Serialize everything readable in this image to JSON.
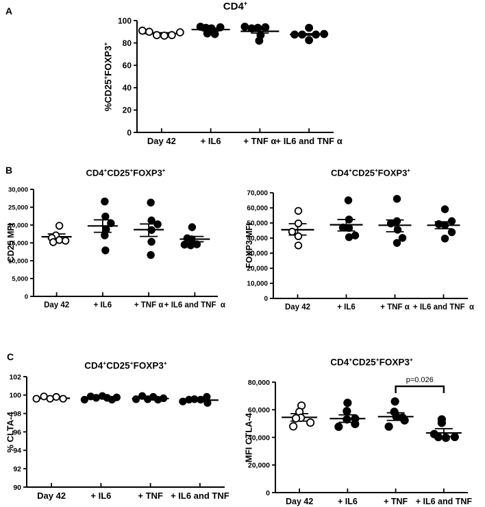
{
  "figure": {
    "background": "#ffffff",
    "ink": "#000000",
    "panels": [
      {
        "letter": "A"
      },
      {
        "letter": "B"
      },
      {
        "letter": "C"
      }
    ]
  },
  "chart_data": [
    {
      "panel": "A",
      "type": "scatter",
      "title_text": "CD4+",
      "title_segments": [
        [
          "CD4",
          0
        ],
        [
          "+",
          1
        ]
      ],
      "ylabel_text": "%CD25+FOXP3+",
      "ylabel_segments": [
        [
          "%CD25",
          0
        ],
        [
          "+",
          1
        ],
        [
          "FOXP3",
          0
        ],
        [
          "+",
          1
        ]
      ],
      "ylim": [
        0,
        100
      ],
      "yticks": [
        [
          0,
          "0"
        ],
        [
          20,
          "20"
        ],
        [
          40,
          "40"
        ],
        [
          60,
          "60"
        ],
        [
          80,
          "80"
        ],
        [
          100,
          "100"
        ]
      ],
      "grid": false,
      "categories": [
        "Day 42",
        "+ IL6",
        "+ TNF α",
        "+ IL6 and TNF α"
      ],
      "groups": [
        {
          "category": "Day 42",
          "marker": "open",
          "mean": 88.4,
          "sem_hi": 89.2,
          "sem_lo": 87.6,
          "points": [
            [
              -28,
              91
            ],
            [
              -18,
              90
            ],
            [
              -7,
              87
            ],
            [
              4,
              86.5
            ],
            [
              15,
              87
            ],
            [
              27,
              89.5
            ]
          ]
        },
        {
          "category": "+ IL6",
          "marker": "filled",
          "mean": 92.0,
          "sem_hi": 93.2,
          "sem_lo": 90.8,
          "points": [
            [
              -15,
              94.5
            ],
            [
              -7,
              93.5
            ],
            [
              1,
              93
            ],
            [
              14,
              94
            ],
            [
              -5,
              88.5
            ],
            [
              6,
              88
            ]
          ]
        },
        {
          "category": "+ TNF α",
          "marker": "filled",
          "mean": 90.4,
          "sem_hi": 92.0,
          "sem_lo": 88.8,
          "points": [
            [
              -22,
              94.5
            ],
            [
              -12,
              93
            ],
            [
              -3,
              93.5
            ],
            [
              8,
              94
            ],
            [
              1,
              87
            ],
            [
              -1,
              82
            ]
          ]
        },
        {
          "category": "+ IL6 and TNF α",
          "marker": "filled",
          "mean": 87.6,
          "sem_hi": 88.3,
          "sem_lo": 86.9,
          "points": [
            [
              -21,
              87.5
            ],
            [
              0,
              93.5
            ],
            [
              -10,
              87.5
            ],
            [
              10,
              87.5
            ],
            [
              22,
              88
            ],
            [
              0,
              82.5
            ]
          ]
        }
      ]
    },
    {
      "panel": "B",
      "type": "scatter",
      "title_text": "CD4+CD25+FOXP3+",
      "title_segments": [
        [
          "CD4",
          0
        ],
        [
          "+",
          1
        ],
        [
          "CD25",
          0
        ],
        [
          "+",
          1
        ],
        [
          "FOXP3",
          0
        ],
        [
          "+",
          1
        ]
      ],
      "ylabel_text": "CD25 MFI",
      "ylabel_segments": [
        [
          "CD25 MFI",
          0
        ]
      ],
      "ylim": [
        0,
        30000
      ],
      "yticks": [
        [
          0,
          "0"
        ],
        [
          5000,
          "5,000"
        ],
        [
          10000,
          "10,000"
        ],
        [
          15000,
          "15,000"
        ],
        [
          20000,
          "20,000"
        ],
        [
          25000,
          "25,000"
        ],
        [
          30000,
          "30,000"
        ]
      ],
      "grid": false,
      "categories": [
        "Day 42",
        "+ IL6",
        "+ TNF α",
        "+ IL6 and TNF  α"
      ],
      "groups": [
        {
          "category": "Day 42",
          "marker": "open",
          "mean": 16700,
          "sem_hi": 17500,
          "sem_lo": 16200,
          "points": [
            [
              4,
              19800
            ],
            [
              -1,
              17100
            ],
            [
              -7,
              16400
            ],
            [
              4,
              15800
            ],
            [
              -5,
              15200
            ],
            [
              13,
              15600
            ]
          ]
        },
        {
          "category": "+ IL6",
          "marker": "filled",
          "mean": 19750,
          "sem_hi": 21450,
          "sem_lo": 17950,
          "points": [
            [
              3,
              26600
            ],
            [
              4,
              22400
            ],
            [
              12,
              20500
            ],
            [
              5,
              18800
            ],
            [
              3,
              17100
            ],
            [
              4,
              12900
            ]
          ]
        },
        {
          "category": "+ TNF α",
          "marker": "filled",
          "mean": 18700,
          "sem_hi": 20300,
          "sem_lo": 16800,
          "points": [
            [
              3,
              26300
            ],
            [
              4,
              21300
            ],
            [
              13,
              20200
            ],
            [
              4,
              18600
            ],
            [
              4,
              15300
            ],
            [
              3,
              11600
            ]
          ]
        },
        {
          "category": "+ IL6 and TNF  α",
          "marker": "filled",
          "mean": 16050,
          "sem_hi": 16800,
          "sem_lo": 15300,
          "points": [
            [
              -4,
              19400
            ],
            [
              -11,
              16300
            ],
            [
              -5,
              16000
            ],
            [
              -15,
              14500
            ],
            [
              -6,
              14300
            ],
            [
              3,
              14600
            ]
          ]
        }
      ]
    },
    {
      "panel": "B",
      "type": "scatter",
      "title_text": "CD4+CD25+FOXP3+",
      "title_segments": [
        [
          "CD4",
          0
        ],
        [
          "+",
          1
        ],
        [
          "CD25",
          0
        ],
        [
          "+",
          1
        ],
        [
          "FOXP3",
          0
        ],
        [
          "+",
          1
        ]
      ],
      "ylabel_text": "FOXP3 MFI",
      "ylabel_segments": [
        [
          "FOXP3 MFI",
          0
        ]
      ],
      "ylim": [
        0,
        70000
      ],
      "yticks": [
        [
          0,
          "0"
        ],
        [
          10000,
          "10,000"
        ],
        [
          20000,
          "20,000"
        ],
        [
          30000,
          "30,000"
        ],
        [
          40000,
          "40,000"
        ],
        [
          50000,
          "50,000"
        ],
        [
          60000,
          "60,000"
        ],
        [
          70000,
          "70,000"
        ]
      ],
      "grid": false,
      "categories": [
        "Day 42",
        "+ IL6",
        "+ TNF α",
        "+ IL6 and TNF  α"
      ],
      "groups": [
        {
          "category": "Day 42",
          "marker": "open",
          "mean": 45500,
          "sem_hi": 49500,
          "sem_lo": 42000,
          "points": [
            [
              1,
              58000
            ],
            [
              1,
              49700
            ],
            [
              -8,
              44200
            ],
            [
              1,
              41200
            ],
            [
              1,
              35100
            ]
          ]
        },
        {
          "category": "+ IL6",
          "marker": "filled",
          "mean": 48800,
          "sem_hi": 52300,
          "sem_lo": 44700,
          "points": [
            [
              3,
              65000
            ],
            [
              4,
              52300
            ],
            [
              -5,
              47000
            ],
            [
              4,
              46700
            ],
            [
              13,
              41700
            ],
            [
              4,
              40600
            ]
          ]
        },
        {
          "category": "+ TNF α",
          "marker": "filled",
          "mean": 48500,
          "sem_hi": 52000,
          "sem_lo": 44200,
          "points": [
            [
              3,
              66000
            ],
            [
              3,
              51200
            ],
            [
              -6,
              49700
            ],
            [
              4,
              45500
            ],
            [
              11,
              40100
            ],
            [
              3,
              36800
            ]
          ]
        },
        {
          "category": "+ IL6 and TNF  α",
          "marker": "filled",
          "mean": 48500,
          "sem_hi": 50800,
          "sem_lo": 46200,
          "points": [
            [
              2,
              59100
            ],
            [
              12,
              51200
            ],
            [
              -7,
              49200
            ],
            [
              2,
              48500
            ],
            [
              12,
              43900
            ],
            [
              2,
              39700
            ]
          ]
        }
      ]
    },
    {
      "panel": "C",
      "type": "scatter",
      "title_text": "CD4+CD25+FOXP3+",
      "title_segments": [
        [
          "CD4",
          0
        ],
        [
          "+",
          1
        ],
        [
          "CD25",
          0
        ],
        [
          "+",
          1
        ],
        [
          "FOXP3",
          0
        ],
        [
          "+",
          1
        ]
      ],
      "ylabel_text": "% CLTA-4",
      "ylabel_segments": [
        [
          "% CLTA-4",
          0
        ]
      ],
      "ylim": [
        90,
        102
      ],
      "yticks": [
        [
          90,
          "90"
        ],
        [
          92,
          "92"
        ],
        [
          94,
          "94"
        ],
        [
          96,
          "96"
        ],
        [
          98,
          "98"
        ],
        [
          100,
          "100"
        ],
        [
          102,
          "102"
        ]
      ],
      "grid": false,
      "categories": [
        "Day 42",
        "+ IL6",
        "+ TNF",
        "+ IL6 and TNF"
      ],
      "groups": [
        {
          "category": "Day 42",
          "marker": "open",
          "mean": 99.65,
          "sem_hi": 99.65,
          "sem_lo": 99.65,
          "points": [
            [
              -22,
              99.6
            ],
            [
              -11,
              99.85
            ],
            [
              -2,
              99.6
            ],
            [
              7,
              99.8
            ],
            [
              17,
              99.6
            ]
          ]
        },
        {
          "category": "+ IL6",
          "marker": "filled",
          "mean": 99.68,
          "sem_hi": 99.68,
          "sem_lo": 99.68,
          "points": [
            [
              -24,
              99.5
            ],
            [
              -15,
              99.85
            ],
            [
              -7,
              99.7
            ],
            [
              2,
              99.9
            ],
            [
              9,
              99.7
            ],
            [
              16,
              99.5
            ],
            [
              23,
              99.75
            ]
          ]
        },
        {
          "category": "+ TNF",
          "marker": "filled",
          "mean": 99.62,
          "sem_hi": 99.62,
          "sem_lo": 99.62,
          "points": [
            [
              -21,
              99.55
            ],
            [
              -12,
              99.9
            ],
            [
              -4,
              99.55
            ],
            [
              4,
              99.8
            ],
            [
              11,
              99.5
            ],
            [
              19,
              99.65
            ]
          ]
        },
        {
          "category": "+ IL6 and TNF",
          "marker": "filled",
          "mean": 99.45,
          "sem_hi": 99.45,
          "sem_lo": 99.45,
          "points": [
            [
              -25,
              99.3
            ],
            [
              -16,
              99.5
            ],
            [
              -8,
              99.55
            ],
            [
              1,
              99.5
            ],
            [
              10,
              99.8
            ],
            [
              11,
              99.15
            ]
          ]
        }
      ]
    },
    {
      "panel": "C",
      "type": "scatter",
      "title_text": "CD4+CD25+FOXP3+",
      "title_segments": [
        [
          "CD4",
          0
        ],
        [
          "+",
          1
        ],
        [
          "CD25",
          0
        ],
        [
          "+",
          1
        ],
        [
          "FOXP3",
          0
        ],
        [
          "+",
          1
        ]
      ],
      "ylabel_text": "MFI CTLA-4",
      "ylabel_segments": [
        [
          "MFI CTLA-4",
          0
        ]
      ],
      "ylim": [
        0,
        80000
      ],
      "yticks": [
        [
          0,
          "0"
        ],
        [
          20000,
          "20,000"
        ],
        [
          40000,
          "40,000"
        ],
        [
          60000,
          "60,000"
        ],
        [
          80000,
          "80,000"
        ]
      ],
      "grid": false,
      "categories": [
        "Day 42",
        "+ IL6",
        "+ TNF",
        "+ IL6 and TNF"
      ],
      "significance": {
        "from": 2,
        "to": 3,
        "y": 77000,
        "label": "p=0.026"
      },
      "groups": [
        {
          "category": "Day 42",
          "marker": "open",
          "mean": 54500,
          "sem_hi": 57200,
          "sem_lo": 51800,
          "points": [
            [
              3,
              63000
            ],
            [
              0,
              58500
            ],
            [
              2,
              54200
            ],
            [
              -5,
              53800
            ],
            [
              16,
              50700
            ],
            [
              -9,
              48000
            ]
          ]
        },
        {
          "category": "+ IL6",
          "marker": "filled",
          "mean": 53600,
          "sem_hi": 56300,
          "sem_lo": 50900,
          "points": [
            [
              0,
              65000
            ],
            [
              -1,
              59000
            ],
            [
              -1,
              53000
            ],
            [
              11,
              53600
            ],
            [
              11,
              49700
            ],
            [
              -13,
              47700
            ]
          ]
        },
        {
          "category": "+ TNF",
          "marker": "filled",
          "mean": 55000,
          "sem_hi": 57800,
          "sem_lo": 52300,
          "points": [
            [
              -1,
              66000
            ],
            [
              -2,
              58500
            ],
            [
              1,
              55000
            ],
            [
              10,
              54300
            ],
            [
              13,
              52300
            ],
            [
              -10,
              47800
            ]
          ]
        },
        {
          "category": "+ IL6 and TNF",
          "marker": "filled",
          "mean": 43200,
          "sem_hi": 46300,
          "sem_lo": 40600,
          "points": [
            [
              -3,
              53000
            ],
            [
              -3,
              50500
            ],
            [
              -14,
              42400
            ],
            [
              -8,
              40200
            ],
            [
              3,
              39700
            ],
            [
              16,
              40300
            ]
          ]
        }
      ]
    }
  ]
}
